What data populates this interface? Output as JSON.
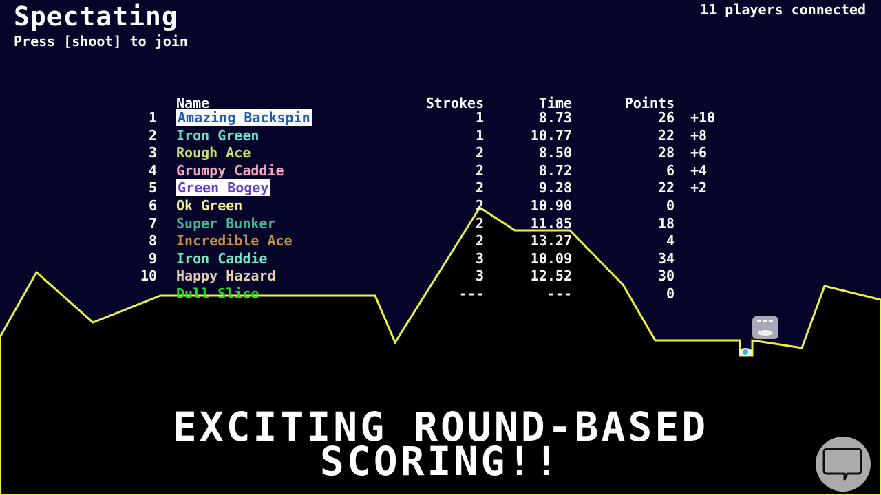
{
  "header": {
    "title": "Spectating",
    "subtitle": "Press [shoot] to join",
    "players": "11 players connected"
  },
  "table": {
    "columns": {
      "name": "Name",
      "strokes": "Strokes",
      "time": "Time",
      "points": "Points"
    },
    "rows": [
      {
        "rank": "1",
        "name": "Amazing Backspin",
        "color": "#1a5fb4",
        "highlight": true,
        "strokes": "1",
        "time": "8.73",
        "points": "26",
        "delta": "+10"
      },
      {
        "rank": "2",
        "name": "Iron Green",
        "color": "#6ee0c8",
        "strokes": "1",
        "time": "10.77",
        "points": "22",
        "delta": "+8"
      },
      {
        "rank": "3",
        "name": "Rough Ace",
        "color": "#c8e070",
        "strokes": "2",
        "time": "8.50",
        "points": "28",
        "delta": "+6"
      },
      {
        "rank": "4",
        "name": "Grumpy Caddie",
        "color": "#f0a8c0",
        "strokes": "2",
        "time": "8.72",
        "points": "6",
        "delta": "+4"
      },
      {
        "rank": "5",
        "name": "Green Bogey",
        "color": "#6040c8",
        "highlight": true,
        "strokes": "2",
        "time": "9.28",
        "points": "22",
        "delta": "+2"
      },
      {
        "rank": "6",
        "name": "Ok Green",
        "color": "#f0f090",
        "strokes": "2",
        "time": "10.90",
        "points": "0",
        "delta": ""
      },
      {
        "rank": "7",
        "name": "Super Bunker",
        "color": "#40b890",
        "strokes": "2",
        "time": "11.85",
        "points": "18",
        "delta": ""
      },
      {
        "rank": "8",
        "name": "Incredible Ace",
        "color": "#c89040",
        "strokes": "2",
        "time": "13.27",
        "points": "4",
        "delta": ""
      },
      {
        "rank": "9",
        "name": "Iron Caddie",
        "color": "#70e8c0",
        "strokes": "3",
        "time": "10.09",
        "points": "34",
        "delta": ""
      },
      {
        "rank": "10",
        "name": "Happy Hazard",
        "color": "#e8d0b0",
        "strokes": "3",
        "time": "12.52",
        "points": "30",
        "delta": ""
      },
      {
        "rank": "",
        "name": "Dull Slice",
        "color": "#20e020",
        "strokes": "---",
        "time": "---",
        "points": "0",
        "delta": ""
      }
    ]
  },
  "promo": {
    "line1": "EXCITING ROUND-BASED",
    "line2": "SCORING!!"
  },
  "colors": {
    "sky": "#05052a",
    "ground": "#000000",
    "terrain_line": "#f0f040",
    "chat_button": "#aaaaaa"
  },
  "icons": {
    "chat": "speech-bubble-icon",
    "player": "ghost-avatar-icon",
    "ball": "golf-ball-icon"
  }
}
